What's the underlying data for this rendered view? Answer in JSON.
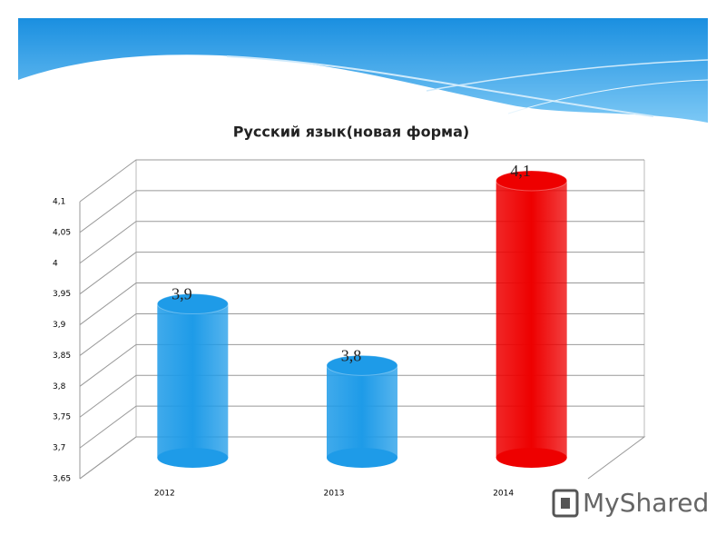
{
  "chart_data": {
    "type": "bar",
    "title": "Русский язык(новая форма)",
    "categories": [
      "2012",
      "2013",
      "2014"
    ],
    "values": [
      3.9,
      3.8,
      4.1
    ],
    "value_labels": [
      "3,9",
      "3,8",
      "4,1"
    ],
    "colors": [
      "#1e9be8",
      "#1e9be8",
      "#ee0000"
    ],
    "ylim": [
      3.65,
      4.1
    ],
    "yticks": [
      {
        "value": 3.65,
        "label": "3,65"
      },
      {
        "value": 3.7,
        "label": "3,7"
      },
      {
        "value": 3.75,
        "label": "3,75"
      },
      {
        "value": 3.8,
        "label": "3,8"
      },
      {
        "value": 3.85,
        "label": "3,85"
      },
      {
        "value": 3.9,
        "label": "3,9"
      },
      {
        "value": 3.95,
        "label": "3,95"
      },
      4,
      {
        "value": 4.05,
        "label": "4,05"
      },
      {
        "value": 4.1,
        "label": "4,1"
      }
    ],
    "grid": true
  },
  "watermark": "MyShared"
}
